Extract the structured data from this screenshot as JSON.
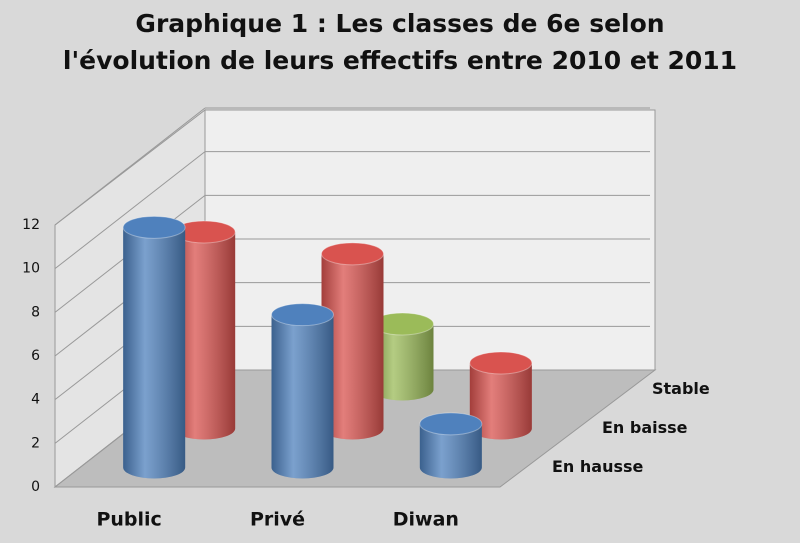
{
  "chart_data": {
    "type": "bar3d",
    "title": [
      "Graphique 1 : Les classes de 6e selon",
      "l'évolution de leurs effectifs entre 2010 et 2011"
    ],
    "categories": [
      "Public",
      "Privé",
      "Diwan"
    ],
    "series": [
      {
        "name": "En hausse",
        "color": "#4f81bd",
        "values": [
          11,
          7,
          2
        ]
      },
      {
        "name": "En baisse",
        "color": "#d9534f",
        "values": [
          9,
          8,
          3
        ]
      },
      {
        "name": "Stable",
        "color": "#9bbb59",
        "values": [
          0,
          3,
          0
        ]
      }
    ],
    "ylim": [
      0,
      12
    ],
    "yticks": [
      0,
      2,
      4,
      6,
      8,
      10,
      12
    ],
    "grid": true
  }
}
